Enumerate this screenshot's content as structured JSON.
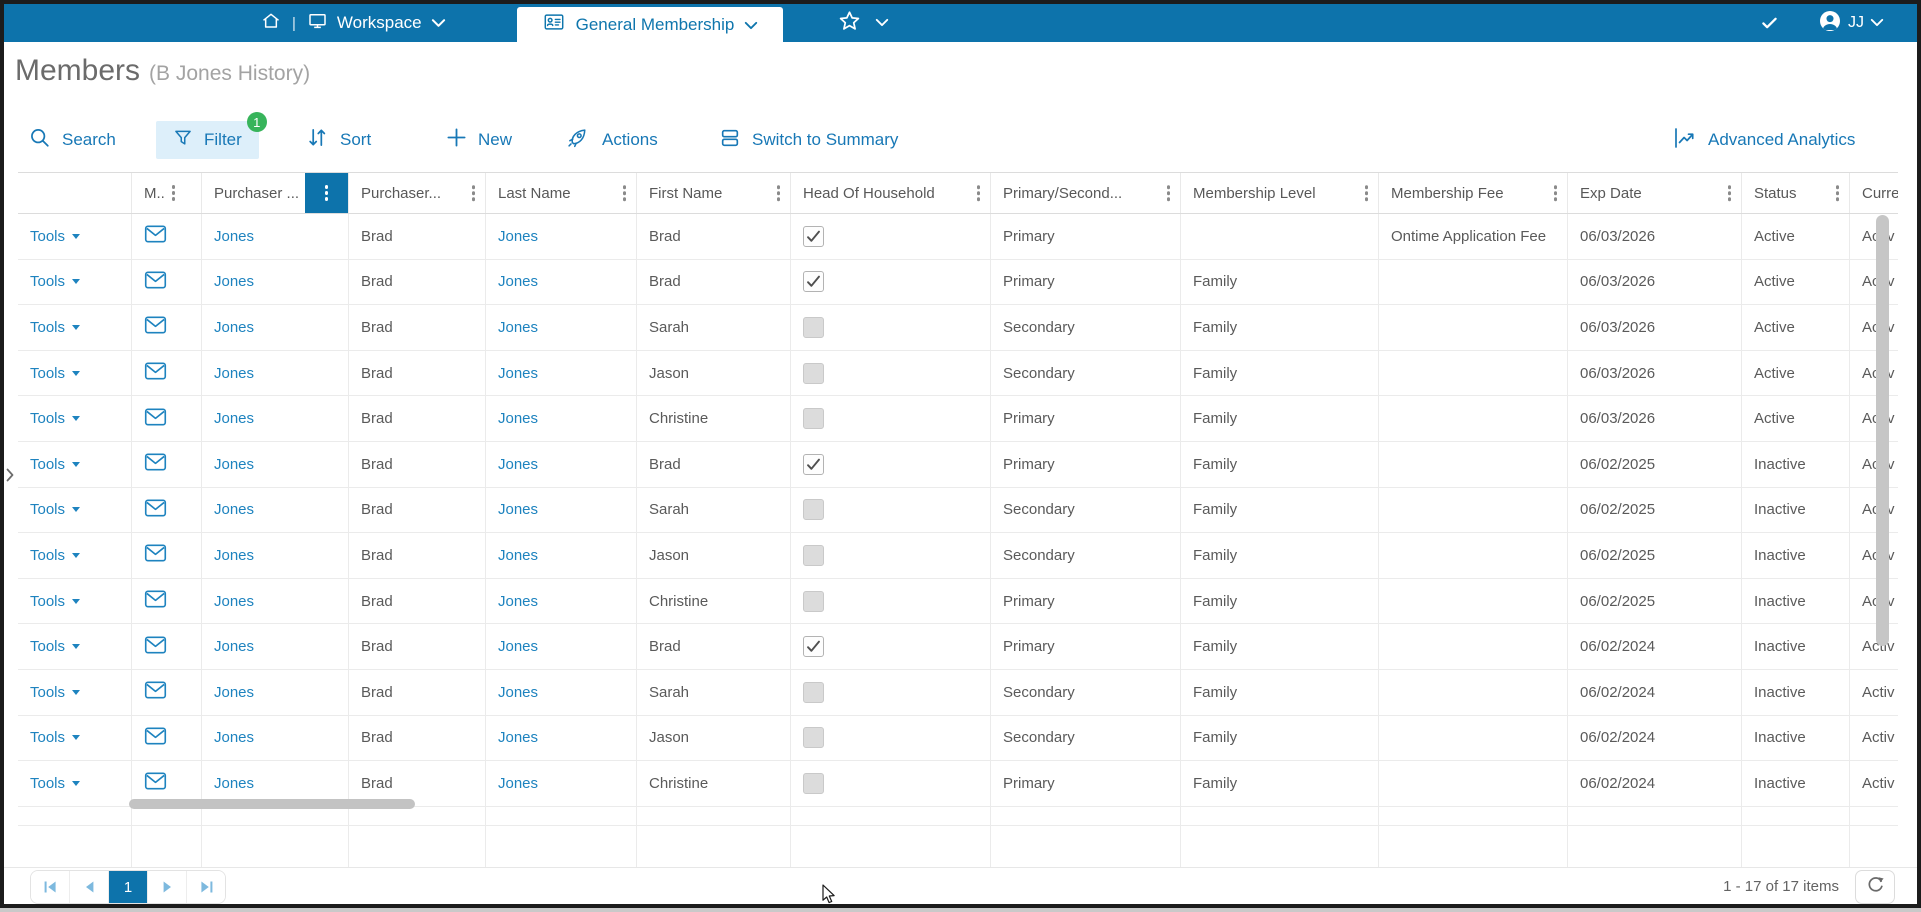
{
  "topbar": {
    "workspace_label": "Workspace",
    "tab_label": "General Membership",
    "user_initials": "JJ"
  },
  "page": {
    "title": "Members",
    "subtitle": "(B Jones History)"
  },
  "toolbar": {
    "search": "Search",
    "filter": "Filter",
    "filter_badge": "1",
    "sort": "Sort",
    "new": "New",
    "actions": "Actions",
    "switch_summary": "Switch to Summary",
    "advanced_analytics": "Advanced Analytics"
  },
  "colors": {
    "topbar_blue": "#0d73ab",
    "link_blue": "#1e83bf",
    "toolbar_blue": "#1878b6",
    "badge_green": "#37b45b",
    "filter_chip_bg": "#ddeffa"
  },
  "table": {
    "tools_label": "Tools",
    "columns": [
      "",
      "M..",
      "Purchaser ...",
      "Purchaser...",
      "Last Name",
      "First Name",
      "Head Of Household",
      "Primary/Second...",
      "Membership Level",
      "Membership Fee",
      "Exp Date",
      "Status",
      "Curre"
    ],
    "rows": [
      {
        "purchaser_last": "Jones",
        "purchaser_first": "Brad",
        "last_name": "Jones",
        "first_name": "Brad",
        "head_of_household": true,
        "primary_secondary": "Primary",
        "membership_level": "",
        "membership_fee": "Ontime Application Fee",
        "exp_date": "06/03/2026",
        "status": "Active",
        "current": "Activ"
      },
      {
        "purchaser_last": "Jones",
        "purchaser_first": "Brad",
        "last_name": "Jones",
        "first_name": "Brad",
        "head_of_household": true,
        "primary_secondary": "Primary",
        "membership_level": "Family",
        "membership_fee": "",
        "exp_date": "06/03/2026",
        "status": "Active",
        "current": "Activ"
      },
      {
        "purchaser_last": "Jones",
        "purchaser_first": "Brad",
        "last_name": "Jones",
        "first_name": "Sarah",
        "head_of_household": false,
        "primary_secondary": "Secondary",
        "membership_level": "Family",
        "membership_fee": "",
        "exp_date": "06/03/2026",
        "status": "Active",
        "current": "Activ"
      },
      {
        "purchaser_last": "Jones",
        "purchaser_first": "Brad",
        "last_name": "Jones",
        "first_name": "Jason",
        "head_of_household": false,
        "primary_secondary": "Secondary",
        "membership_level": "Family",
        "membership_fee": "",
        "exp_date": "06/03/2026",
        "status": "Active",
        "current": "Activ"
      },
      {
        "purchaser_last": "Jones",
        "purchaser_first": "Brad",
        "last_name": "Jones",
        "first_name": "Christine",
        "head_of_household": false,
        "primary_secondary": "Primary",
        "membership_level": "Family",
        "membership_fee": "",
        "exp_date": "06/03/2026",
        "status": "Active",
        "current": "Activ"
      },
      {
        "purchaser_last": "Jones",
        "purchaser_first": "Brad",
        "last_name": "Jones",
        "first_name": "Brad",
        "head_of_household": true,
        "primary_secondary": "Primary",
        "membership_level": "Family",
        "membership_fee": "",
        "exp_date": "06/02/2025",
        "status": "Inactive",
        "current": "Activ"
      },
      {
        "purchaser_last": "Jones",
        "purchaser_first": "Brad",
        "last_name": "Jones",
        "first_name": "Sarah",
        "head_of_household": false,
        "primary_secondary": "Secondary",
        "membership_level": "Family",
        "membership_fee": "",
        "exp_date": "06/02/2025",
        "status": "Inactive",
        "current": "Activ"
      },
      {
        "purchaser_last": "Jones",
        "purchaser_first": "Brad",
        "last_name": "Jones",
        "first_name": "Jason",
        "head_of_household": false,
        "primary_secondary": "Secondary",
        "membership_level": "Family",
        "membership_fee": "",
        "exp_date": "06/02/2025",
        "status": "Inactive",
        "current": "Activ"
      },
      {
        "purchaser_last": "Jones",
        "purchaser_first": "Brad",
        "last_name": "Jones",
        "first_name": "Christine",
        "head_of_household": false,
        "primary_secondary": "Primary",
        "membership_level": "Family",
        "membership_fee": "",
        "exp_date": "06/02/2025",
        "status": "Inactive",
        "current": "Activ"
      },
      {
        "purchaser_last": "Jones",
        "purchaser_first": "Brad",
        "last_name": "Jones",
        "first_name": "Brad",
        "head_of_household": true,
        "primary_secondary": "Primary",
        "membership_level": "Family",
        "membership_fee": "",
        "exp_date": "06/02/2024",
        "status": "Inactive",
        "current": "Activ"
      },
      {
        "purchaser_last": "Jones",
        "purchaser_first": "Brad",
        "last_name": "Jones",
        "first_name": "Sarah",
        "head_of_household": false,
        "primary_secondary": "Secondary",
        "membership_level": "Family",
        "membership_fee": "",
        "exp_date": "06/02/2024",
        "status": "Inactive",
        "current": "Activ"
      },
      {
        "purchaser_last": "Jones",
        "purchaser_first": "Brad",
        "last_name": "Jones",
        "first_name": "Jason",
        "head_of_household": false,
        "primary_secondary": "Secondary",
        "membership_level": "Family",
        "membership_fee": "",
        "exp_date": "06/02/2024",
        "status": "Inactive",
        "current": "Activ"
      },
      {
        "purchaser_last": "Jones",
        "purchaser_first": "Brad",
        "last_name": "Jones",
        "first_name": "Christine",
        "head_of_household": false,
        "primary_secondary": "Primary",
        "membership_level": "Family",
        "membership_fee": "",
        "exp_date": "06/02/2024",
        "status": "Inactive",
        "current": "Activ"
      }
    ]
  },
  "pagination": {
    "current_page": "1",
    "items_text": "1 - 17 of 17 items"
  }
}
